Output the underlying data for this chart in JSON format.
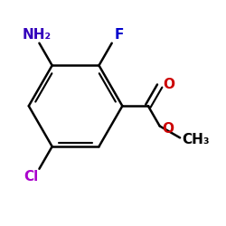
{
  "background_color": "#ffffff",
  "ring_color": "#000000",
  "bond_lw": 1.8,
  "atom_labels": {
    "NH2": {
      "text": "NH₂",
      "color": "#3300bb",
      "fontsize": 11
    },
    "F": {
      "text": "F",
      "color": "#0000cc",
      "fontsize": 11
    },
    "Cl": {
      "text": "Cl",
      "color": "#aa00cc",
      "fontsize": 11
    },
    "O1": {
      "text": "O",
      "color": "#cc0000",
      "fontsize": 11
    },
    "O2": {
      "text": "O",
      "color": "#cc0000",
      "fontsize": 11
    },
    "CH3": {
      "text": "CH₃",
      "color": "#000000",
      "fontsize": 11
    }
  },
  "figsize": [
    2.5,
    2.5
  ],
  "dpi": 100
}
